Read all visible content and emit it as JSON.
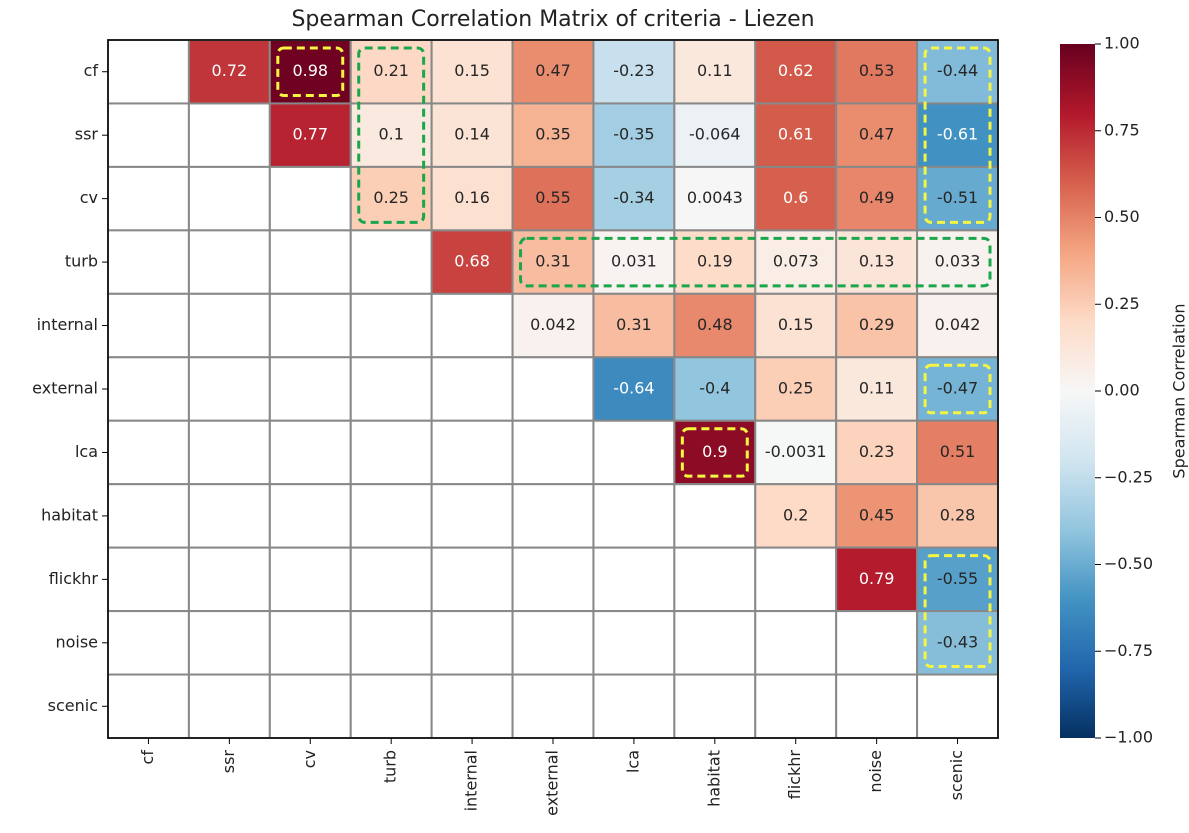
{
  "chart_data": {
    "type": "heatmap",
    "title": "Spearman Correlation Matrix of criteria - Liezen",
    "categories": [
      "cf",
      "ssr",
      "cv",
      "turb",
      "internal",
      "external",
      "lca",
      "habitat",
      "flickhr",
      "noise",
      "scenic"
    ],
    "values": [
      [
        null,
        0.72,
        0.98,
        0.21,
        0.15,
        0.47,
        -0.23,
        0.11,
        0.62,
        0.53,
        -0.44
      ],
      [
        null,
        null,
        0.77,
        0.1,
        0.14,
        0.35,
        -0.35,
        -0.064,
        0.61,
        0.47,
        -0.61
      ],
      [
        null,
        null,
        null,
        0.25,
        0.16,
        0.55,
        -0.34,
        0.0043,
        0.6,
        0.49,
        -0.51
      ],
      [
        null,
        null,
        null,
        null,
        0.68,
        0.31,
        0.031,
        0.19,
        0.073,
        0.13,
        0.033
      ],
      [
        null,
        null,
        null,
        null,
        null,
        0.042,
        0.31,
        0.48,
        0.15,
        0.29,
        0.042
      ],
      [
        null,
        null,
        null,
        null,
        null,
        null,
        -0.64,
        -0.4,
        0.25,
        0.11,
        -0.47
      ],
      [
        null,
        null,
        null,
        null,
        null,
        null,
        null,
        0.9,
        -0.0031,
        0.23,
        0.51
      ],
      [
        null,
        null,
        null,
        null,
        null,
        null,
        null,
        null,
        0.2,
        0.45,
        0.28
      ],
      [
        null,
        null,
        null,
        null,
        null,
        null,
        null,
        null,
        null,
        0.79,
        -0.55
      ],
      [
        null,
        null,
        null,
        null,
        null,
        null,
        null,
        null,
        null,
        null,
        -0.43
      ],
      [
        null,
        null,
        null,
        null,
        null,
        null,
        null,
        null,
        null,
        null,
        null
      ]
    ],
    "colormap": "RdBu_r",
    "clim": [
      -1,
      1
    ],
    "colorbar_label": "Spearman Correlation",
    "cticks": [
      {
        "value": 1,
        "label": "1.00"
      },
      {
        "value": 0.75,
        "label": "0.75"
      },
      {
        "value": 0.5,
        "label": "0.50"
      },
      {
        "value": 0.25,
        "label": "0.25"
      },
      {
        "value": 0,
        "label": "0.00"
      },
      {
        "value": -0.25,
        "label": "−0.25"
      },
      {
        "value": -0.5,
        "label": "−0.50"
      },
      {
        "value": -0.75,
        "label": "−0.75"
      },
      {
        "value": -1,
        "label": "−1.00"
      }
    ]
  }
}
